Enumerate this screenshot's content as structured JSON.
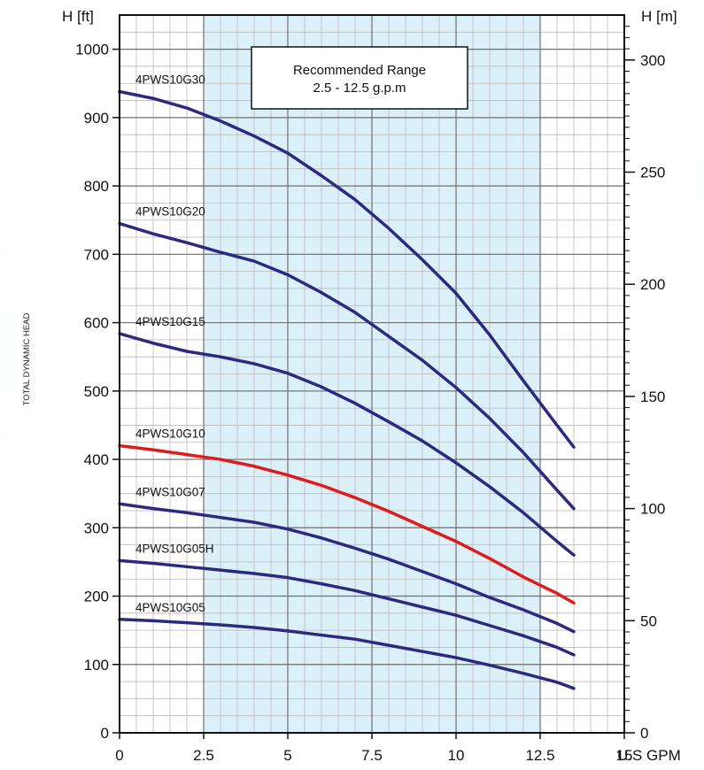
{
  "chart_data": {
    "type": "line",
    "title": "",
    "ylabel": "H [ft]",
    "ylabel_right": "H [m]",
    "xlabel": "U.S GPM",
    "side_label": "TOTAL DYNAMIC HEAD",
    "xlim": [
      0,
      15
    ],
    "ylim": [
      0,
      1050
    ],
    "ylim_right": [
      0,
      320.04
    ],
    "x_ticks": [
      0,
      2.5,
      5,
      7.5,
      10,
      12.5,
      15
    ],
    "x_tick_labels": [
      "0",
      "2.5",
      "5",
      "7.5",
      "10",
      "12.5",
      "15"
    ],
    "y_ticks": [
      0,
      100,
      200,
      300,
      400,
      500,
      600,
      700,
      800,
      900,
      1000
    ],
    "y_right_ticks": [
      0,
      50,
      100,
      150,
      200,
      250,
      300
    ],
    "grid": true,
    "recommended_range": {
      "x_start": 2.5,
      "x_end": 12.5,
      "label_line1": "Recommended Range",
      "label_line2": "2.5 - 12.5 g.p.m"
    },
    "series": [
      {
        "name": "4PWS10G30",
        "color": "#2b2a80",
        "x": [
          0,
          1,
          2,
          3,
          4,
          5,
          6,
          7,
          8,
          9,
          10,
          11,
          12,
          13,
          13.5
        ],
        "y": [
          938,
          928,
          914,
          895,
          873,
          848,
          815,
          780,
          738,
          692,
          643,
          582,
          515,
          450,
          418
        ]
      },
      {
        "name": "4PWS10G20",
        "color": "#2b2a80",
        "x": [
          0,
          1,
          2,
          3,
          4,
          5,
          6,
          7,
          8,
          9,
          10,
          11,
          12,
          13,
          13.5
        ],
        "y": [
          745,
          730,
          717,
          703,
          690,
          670,
          644,
          615,
          580,
          545,
          505,
          460,
          410,
          355,
          328
        ]
      },
      {
        "name": "4PWS10G15",
        "color": "#2b2a80",
        "x": [
          0,
          1,
          2,
          3,
          4,
          5,
          6,
          7,
          8,
          9,
          10,
          11,
          12,
          13,
          13.5
        ],
        "y": [
          584,
          570,
          558,
          550,
          540,
          526,
          506,
          482,
          455,
          427,
          395,
          360,
          322,
          280,
          260
        ]
      },
      {
        "name": "4PWS10G10",
        "color": "#e01b1b",
        "x": [
          0,
          1,
          2,
          3,
          4,
          5,
          6,
          7,
          8,
          9,
          10,
          11,
          12,
          13,
          13.5
        ],
        "y": [
          420,
          414,
          407,
          400,
          390,
          377,
          362,
          344,
          324,
          302,
          280,
          255,
          228,
          204,
          190
        ]
      },
      {
        "name": "4PWS10G07",
        "color": "#2b2a80",
        "x": [
          0,
          1,
          2,
          3,
          4,
          5,
          6,
          7,
          8,
          9,
          10,
          11,
          12,
          13,
          13.5
        ],
        "y": [
          335,
          328,
          322,
          315,
          308,
          298,
          285,
          270,
          254,
          236,
          218,
          198,
          180,
          160,
          148
        ]
      },
      {
        "name": "4PWS10G05H",
        "color": "#2b2a80",
        "x": [
          0,
          1,
          2,
          3,
          4,
          5,
          6,
          7,
          8,
          9,
          10,
          11,
          12,
          13,
          13.5
        ],
        "y": [
          252,
          248,
          243,
          238,
          233,
          227,
          218,
          208,
          196,
          184,
          172,
          157,
          142,
          125,
          114
        ]
      },
      {
        "name": "4PWS10G05",
        "color": "#2b2a80",
        "x": [
          0,
          1,
          2,
          3,
          4,
          5,
          6,
          7,
          8,
          9,
          10,
          11,
          12,
          13,
          13.5
        ],
        "y": [
          166,
          164,
          161,
          158,
          154,
          149,
          143,
          137,
          128,
          119,
          110,
          99,
          87,
          74,
          65
        ]
      }
    ]
  }
}
